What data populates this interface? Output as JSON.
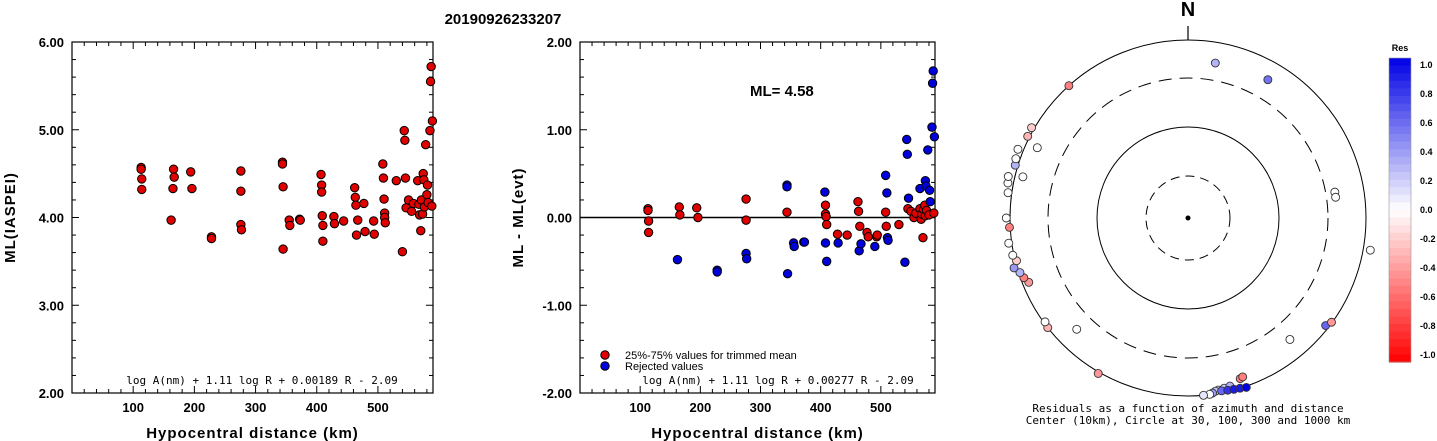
{
  "title": "20190926233207",
  "colors": {
    "red": "#e00000",
    "blue": "#0000dd",
    "axis": "#000000"
  },
  "chart_data": [
    {
      "type": "scatter",
      "xlabel": "Hypocentral distance (km)",
      "ylabel": "ML(IASPEI)",
      "xlim": [
        0,
        590
      ],
      "ylim": [
        2.0,
        6.0
      ],
      "xticks": [
        "100",
        "200",
        "300",
        "400",
        "500"
      ],
      "xtick_values": [
        100,
        200,
        300,
        400,
        500
      ],
      "yticks": [
        "2.00",
        "3.00",
        "4.00",
        "5.00",
        "6.00"
      ],
      "ytick_values": [
        2,
        3,
        4,
        5,
        6
      ],
      "formula": "log A(nm) + 1.11 log R + 0.00189 R - 2.09",
      "series": [
        {
          "color": "#e00000",
          "points": [
            [
              113,
              4.57
            ],
            [
              113,
              4.55
            ],
            [
              114,
              4.44
            ],
            [
              114,
              4.32
            ],
            [
              162,
              3.97
            ],
            [
              165,
              4.33
            ],
            [
              166,
              4.55
            ],
            [
              167,
              4.46
            ],
            [
              194,
              4.52
            ],
            [
              196,
              4.33
            ],
            [
              228,
              3.78
            ],
            [
              228,
              3.76
            ],
            [
              276,
              4.53
            ],
            [
              276,
              4.3
            ],
            [
              276,
              3.92
            ],
            [
              277,
              3.86
            ],
            [
              344,
              4.63
            ],
            [
              344,
              4.61
            ],
            [
              345,
              4.35
            ],
            [
              345,
              3.64
            ],
            [
              355,
              3.97
            ],
            [
              356,
              3.91
            ],
            [
              372,
              3.98
            ],
            [
              373,
              3.97
            ],
            [
              407,
              4.49
            ],
            [
              408,
              4.37
            ],
            [
              408,
              4.29
            ],
            [
              409,
              4.02
            ],
            [
              410,
              3.91
            ],
            [
              410,
              3.73
            ],
            [
              428,
              4.01
            ],
            [
              429,
              3.93
            ],
            [
              444,
              3.96
            ],
            [
              462,
              4.34
            ],
            [
              463,
              4.23
            ],
            [
              464,
              4.14
            ],
            [
              465,
              3.8
            ],
            [
              467,
              3.97
            ],
            [
              477,
              4.16
            ],
            [
              479,
              3.84
            ],
            [
              493,
              3.96
            ],
            [
              494,
              3.81
            ],
            [
              508,
              4.61
            ],
            [
              509,
              4.45
            ],
            [
              510,
              4.21
            ],
            [
              511,
              4.05
            ],
            [
              511,
              4.0
            ],
            [
              512,
              3.94
            ],
            [
              530,
              4.42
            ],
            [
              540,
              3.61
            ],
            [
              543,
              4.99
            ],
            [
              544,
              4.88
            ],
            [
              545,
              4.45
            ],
            [
              546,
              4.11
            ],
            [
              550,
              4.2
            ],
            [
              555,
              4.07
            ],
            [
              558,
              4.16
            ],
            [
              565,
              4.42
            ],
            [
              567,
              4.15
            ],
            [
              568,
              4.03
            ],
            [
              570,
              3.85
            ],
            [
              571,
              4.2
            ],
            [
              573,
              4.04
            ],
            [
              574,
              4.5
            ],
            [
              575,
              4.43
            ],
            [
              576,
              4.12
            ],
            [
              578,
              4.83
            ],
            [
              580,
              4.26
            ],
            [
              581,
              4.37
            ],
            [
              582,
              4.17
            ],
            [
              585,
              4.99
            ],
            [
              586,
              5.55
            ],
            [
              587,
              5.72
            ],
            [
              588,
              4.13
            ],
            [
              589,
              5.1
            ]
          ]
        }
      ]
    },
    {
      "type": "scatter",
      "xlabel": "Hypocentral distance (km)",
      "ylabel": "ML - ML(evt)",
      "xlim": [
        0,
        590
      ],
      "ylim": [
        -2.0,
        2.0
      ],
      "xticks": [
        "100",
        "200",
        "300",
        "400",
        "500"
      ],
      "xtick_values": [
        100,
        200,
        300,
        400,
        500
      ],
      "yticks": [
        "-2.00",
        "-1.00",
        "0.00",
        "1.00",
        "2.00"
      ],
      "ytick_values": [
        -2,
        -1,
        0,
        1,
        2
      ],
      "hline": 0,
      "annotation": "ML= 4.58",
      "formula": "log A(nm) + 1.11 log R + 0.00277 R - 2.09",
      "legend": [
        {
          "label": "25%-75% values for trimmed mean",
          "color": "#e00000"
        },
        {
          "label": "Rejected values",
          "color": "#0000dd"
        }
      ],
      "series": [
        {
          "name": "25%-75% values for trimmed mean",
          "color": "#e00000",
          "points": [
            [
              113,
              0.1
            ],
            [
              113,
              0.08
            ],
            [
              114,
              -0.04
            ],
            [
              114,
              -0.17
            ],
            [
              165,
              0.12
            ],
            [
              166,
              0.03
            ],
            [
              194,
              0.11
            ],
            [
              196,
              0.0
            ],
            [
              276,
              0.21
            ],
            [
              276,
              -0.03
            ],
            [
              344,
              0.06
            ],
            [
              408,
              0.14
            ],
            [
              408,
              0.04
            ],
            [
              409,
              0.01
            ],
            [
              410,
              -0.08
            ],
            [
              428,
              -0.19
            ],
            [
              444,
              -0.2
            ],
            [
              462,
              0.18
            ],
            [
              463,
              0.07
            ],
            [
              465,
              -0.1
            ],
            [
              477,
              -0.17
            ],
            [
              479,
              -0.22
            ],
            [
              493,
              -0.22
            ],
            [
              494,
              -0.2
            ],
            [
              508,
              0.06
            ],
            [
              509,
              -0.1
            ],
            [
              530,
              -0.08
            ],
            [
              545,
              0.1
            ],
            [
              550,
              0.07
            ],
            [
              555,
              0.0
            ],
            [
              558,
              0.05
            ],
            [
              565,
              0.1
            ],
            [
              567,
              -0.02
            ],
            [
              568,
              0.04
            ],
            [
              570,
              -0.23
            ],
            [
              571,
              0.09
            ],
            [
              573,
              0.14
            ],
            [
              574,
              0.02
            ],
            [
              576,
              0.08
            ],
            [
              580,
              0.03
            ],
            [
              588,
              0.05
            ]
          ]
        },
        {
          "name": "Rejected values",
          "color": "#0000dd",
          "points": [
            [
              162,
              -0.48
            ],
            [
              228,
              -0.6
            ],
            [
              228,
              -0.62
            ],
            [
              276,
              -0.41
            ],
            [
              277,
              -0.47
            ],
            [
              344,
              0.37
            ],
            [
              344,
              0.35
            ],
            [
              345,
              -0.64
            ],
            [
              355,
              -0.29
            ],
            [
              356,
              -0.33
            ],
            [
              372,
              -0.28
            ],
            [
              373,
              -0.28
            ],
            [
              407,
              0.29
            ],
            [
              408,
              -0.29
            ],
            [
              410,
              -0.5
            ],
            [
              429,
              -0.29
            ],
            [
              464,
              -0.38
            ],
            [
              467,
              -0.3
            ],
            [
              490,
              -0.33
            ],
            [
              508,
              0.48
            ],
            [
              510,
              0.28
            ],
            [
              511,
              -0.23
            ],
            [
              512,
              -0.26
            ],
            [
              540,
              -0.51
            ],
            [
              543,
              0.89
            ],
            [
              544,
              0.72
            ],
            [
              546,
              0.22
            ],
            [
              565,
              0.33
            ],
            [
              574,
              0.42
            ],
            [
              575,
              0.36
            ],
            [
              578,
              0.77
            ],
            [
              581,
              0.31
            ],
            [
              582,
              0.18
            ],
            [
              585,
              1.03
            ],
            [
              586,
              1.53
            ],
            [
              587,
              1.67
            ],
            [
              589,
              0.92
            ]
          ]
        }
      ]
    },
    {
      "type": "scatter",
      "projection": "polar",
      "north_label": "N",
      "caption_line1": "Residuals as a function of azimuth and distance",
      "caption_line2": "Center (10km), Circle at 30, 100, 300 and 1000 km",
      "colorbar_title": "Res",
      "colorbar_ticks": [
        "1.0",
        "0.8",
        "0.6",
        "0.4",
        "0.2",
        "0.0",
        "-0.2",
        "-0.4",
        "-0.6",
        "-0.8",
        "-1.0"
      ],
      "rings_km": [
        30,
        100,
        300,
        1000
      ],
      "stations": [
        {
          "az": 30,
          "dist": 560,
          "res": 0.55
        },
        {
          "az": 80,
          "dist": 400,
          "res": 0.0
        },
        {
          "az": 82,
          "dist": 400,
          "res": 0.0
        },
        {
          "az": 100,
          "dist": 1200,
          "res": 0.0
        },
        {
          "az": 140,
          "dist": 540,
          "res": 0.0
        },
        {
          "az": 128,
          "dist": 900,
          "res": 0.6
        },
        {
          "az": 126,
          "dist": 980,
          "res": -0.4
        },
        {
          "az": 162,
          "dist": 750,
          "res": -0.5
        },
        {
          "az": 161,
          "dist": 730,
          "res": -0.5
        },
        {
          "az": 170,
          "dist": 900,
          "res": 0.1
        },
        {
          "az": 168,
          "dist": 880,
          "res": 0.2
        },
        {
          "az": 166,
          "dist": 860,
          "res": 0.3
        },
        {
          "az": 171,
          "dist": 920,
          "res": 0.2
        },
        {
          "az": 169,
          "dist": 940,
          "res": 0.6
        },
        {
          "az": 167,
          "dist": 960,
          "res": 0.8
        },
        {
          "az": 165,
          "dist": 980,
          "res": 0.9
        },
        {
          "az": 163,
          "dist": 1000,
          "res": 0.9
        },
        {
          "az": 161,
          "dist": 1030,
          "res": 1.0
        },
        {
          "az": 172,
          "dist": 960,
          "res": 0.4
        },
        {
          "az": 173,
          "dist": 990,
          "res": 0.0
        },
        {
          "az": 175,
          "dist": 1000,
          "res": 0.1
        },
        {
          "az": 210,
          "dist": 1040,
          "res": -0.4
        },
        {
          "az": 225,
          "dist": 520,
          "res": 0.0
        },
        {
          "az": 232,
          "dist": 1000,
          "res": -0.3
        },
        {
          "az": 234,
          "dist": 960,
          "res": 0.0
        },
        {
          "az": 248,
          "dist": 820,
          "res": -0.4
        },
        {
          "az": 250,
          "dist": 900,
          "res": -0.5
        },
        {
          "az": 252,
          "dist": 960,
          "res": 0.3
        },
        {
          "az": 254,
          "dist": 1080,
          "res": 0.4
        },
        {
          "az": 256,
          "dist": 960,
          "res": -0.2
        },
        {
          "az": 258,
          "dist": 1030,
          "res": 0.0
        },
        {
          "az": 262,
          "dist": 1080,
          "res": 0.0
        },
        {
          "az": 267,
          "dist": 1020,
          "res": -0.5
        },
        {
          "az": 270,
          "dist": 1100,
          "res": 0.0
        },
        {
          "az": 278,
          "dist": 1100,
          "res": 0.0
        },
        {
          "az": 281,
          "dist": 1150,
          "res": 0.0
        },
        {
          "az": 283,
          "dist": 1180,
          "res": 0.0
        },
        {
          "az": 287,
          "dist": 1070,
          "res": 0.3
        },
        {
          "az": 289,
          "dist": 1110,
          "res": 0.0
        },
        {
          "az": 292,
          "dist": 1150,
          "res": 0.0
        },
        {
          "az": 297,
          "dist": 1050,
          "res": -0.3
        },
        {
          "az": 300,
          "dist": 1070,
          "res": -0.2
        },
        {
          "az": 295,
          "dist": 690,
          "res": 0.0
        },
        {
          "az": 318,
          "dist": 1000,
          "res": -0.5
        },
        {
          "az": 10,
          "dist": 520,
          "res": 0.3
        },
        {
          "az": 284,
          "dist": 780,
          "res": 0.0
        }
      ]
    }
  ]
}
